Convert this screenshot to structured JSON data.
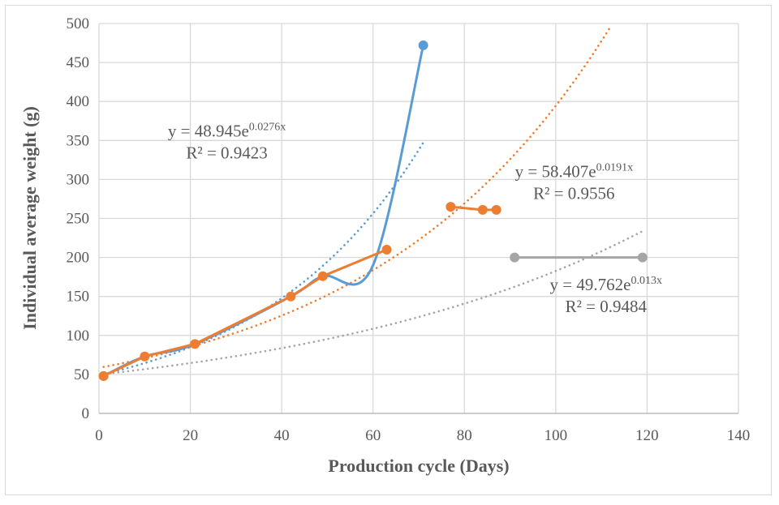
{
  "chart_data": {
    "type": "line",
    "title": "",
    "xlabel": "Production cycle (Days)",
    "ylabel": "Individual average weight (g)",
    "xlim": [
      0,
      140
    ],
    "ylim": [
      0,
      500
    ],
    "xticks": [
      0,
      20,
      40,
      60,
      80,
      100,
      120,
      140
    ],
    "yticks": [
      0,
      50,
      100,
      150,
      200,
      250,
      300,
      350,
      400,
      450,
      500
    ],
    "grid": true,
    "legend": "none",
    "series": [
      {
        "name": "blue",
        "color": "#5b9bd5",
        "smooth": true,
        "markers_at": [
          71
        ],
        "points": [
          [
            1,
            48
          ],
          [
            10,
            73
          ],
          [
            21,
            89
          ],
          [
            42,
            150
          ],
          [
            49,
            176
          ],
          [
            60,
            190
          ],
          [
            71,
            472
          ]
        ],
        "trendline": {
          "type": "exponential",
          "a": 48.945,
          "b": 0.0276,
          "x_range": [
            1,
            71
          ],
          "equation": "y = 48.945e",
          "exponent": "0.0276x",
          "r2": "R² = 0.9423"
        }
      },
      {
        "name": "orange",
        "color": "#ed7d31",
        "smooth": false,
        "segments": [
          [
            [
              1,
              48
            ],
            [
              10,
              73
            ],
            [
              21,
              89
            ],
            [
              42,
              150
            ],
            [
              49,
              176
            ],
            [
              63,
              210
            ]
          ],
          [
            [
              77,
              265
            ],
            [
              84,
              261
            ],
            [
              87,
              261
            ]
          ]
        ],
        "trendline": {
          "type": "exponential",
          "a": 58.407,
          "b": 0.0191,
          "x_range": [
            1,
            113
          ],
          "equation": "y = 58.407e",
          "exponent": "0.0191x",
          "r2": "R² = 0.9556"
        }
      },
      {
        "name": "gray",
        "color": "#a5a5a5",
        "smooth": false,
        "segments": [
          [
            [
              1,
              48
            ]
          ],
          [
            [
              91,
              200
            ],
            [
              119,
              200
            ]
          ]
        ],
        "trendline": {
          "type": "exponential",
          "a": 49.762,
          "b": 0.013,
          "x_range": [
            1,
            119
          ],
          "equation": "y = 49.762e",
          "exponent": "0.013x",
          "r2": "R² = 0.9484"
        }
      }
    ],
    "annotations": [
      {
        "series": "blue",
        "anchor_data": [
          28,
          355
        ]
      },
      {
        "series": "orange",
        "anchor_data": [
          104,
          303
        ]
      },
      {
        "series": "gray",
        "anchor_data": [
          111,
          158
        ]
      }
    ]
  }
}
